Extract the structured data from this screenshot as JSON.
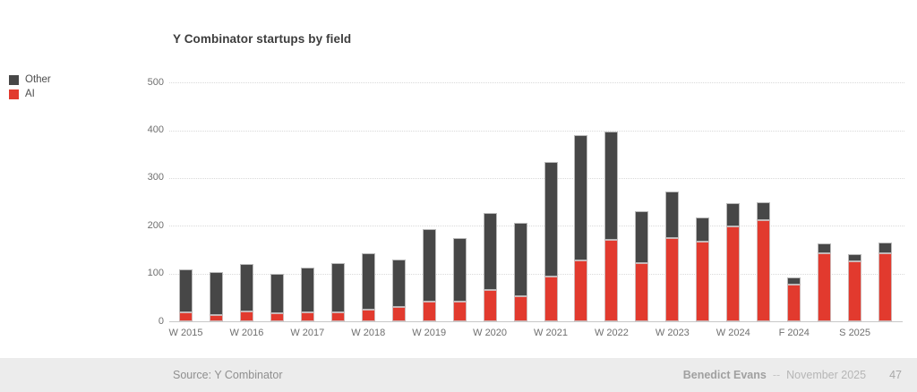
{
  "title": "Y Combinator startups by field",
  "legend": {
    "items": [
      {
        "label": "Other",
        "color": "#474747"
      },
      {
        "label": "AI",
        "color": "#e23a2e"
      }
    ]
  },
  "footer": {
    "source": "Source: Y Combinator",
    "author": "Benedict Evans",
    "separator": "--",
    "date": "November 2025",
    "page": "47"
  },
  "chart_data": {
    "type": "bar",
    "stacked": true,
    "title": "Y Combinator startups by field",
    "bar_count": 24,
    "x_tick_labels": [
      "W 2015",
      "W 2016",
      "W 2017",
      "W 2018",
      "W 2019",
      "W 2020",
      "W 2021",
      "W 2022",
      "W 2023",
      "W 2024",
      "F 2024",
      "S 2025"
    ],
    "x_tick_bar_indices": [
      0,
      2,
      4,
      6,
      8,
      10,
      12,
      14,
      16,
      18,
      20,
      22
    ],
    "series": [
      {
        "name": "AI",
        "color": "#e23a2e",
        "values": [
          18,
          14,
          20,
          16,
          19,
          19,
          25,
          30,
          41,
          42,
          65,
          53,
          94,
          128,
          170,
          122,
          174,
          166,
          198,
          212,
          77,
          142,
          126,
          143
        ]
      },
      {
        "name": "Other",
        "color": "#474747",
        "values": [
          91,
          89,
          100,
          84,
          94,
          103,
          118,
          100,
          152,
          133,
          162,
          154,
          239,
          261,
          228,
          109,
          98,
          52,
          50,
          38,
          14,
          21,
          14,
          21
        ]
      }
    ],
    "totals": [
      109,
      103,
      120,
      100,
      113,
      122,
      143,
      130,
      193,
      175,
      227,
      207,
      333,
      389,
      398,
      231,
      272,
      218,
      248,
      250,
      91,
      163,
      140,
      164
    ],
    "ylim": [
      0,
      500
    ],
    "yticks": [
      0,
      100,
      200,
      300,
      400,
      500
    ],
    "grid": "horizontal-dotted",
    "legend_position": "top-left"
  }
}
